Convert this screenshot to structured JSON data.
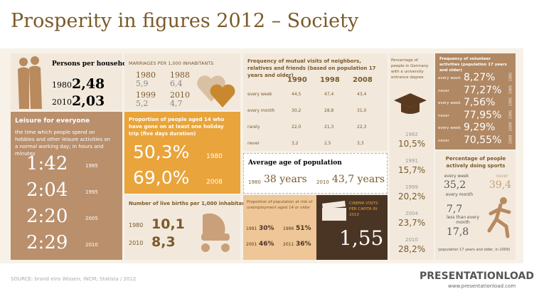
{
  "title": "Prosperity in figures 2012 – Society",
  "household": {
    "title": "Persons per household",
    "rows": [
      {
        "year": "1980",
        "value": "2,48"
      },
      {
        "year": "2010",
        "value": "2,03"
      }
    ]
  },
  "marriages": {
    "title": "MARRIAGES PER 1,000 INHABITANTS",
    "rows": [
      {
        "year": "1980",
        "value": "5,9"
      },
      {
        "year": "1988",
        "value": "6,4"
      },
      {
        "year": "1999",
        "value": "5,2"
      },
      {
        "year": "2010",
        "value": "4,7"
      }
    ]
  },
  "leisure": {
    "title": "Leisure for everyone",
    "description": "the time which people spend on hobbies and other leisure activities on a normal working day; in hours and minutes",
    "rows": [
      {
        "time": "1:42",
        "year": "1985"
      },
      {
        "time": "2:04",
        "year": "1995"
      },
      {
        "time": "2:20",
        "year": "2005"
      },
      {
        "time": "2:29",
        "year": "2010"
      }
    ]
  },
  "holiday": {
    "title": "Proportion of people aged 14 who have gone on at least one holiday trip (five days duration)",
    "rows": [
      {
        "value": "50,3%",
        "year": "1980"
      },
      {
        "value": "69,0%",
        "year": "2008"
      }
    ]
  },
  "births": {
    "title": "Number of live births per 1,000 inhabitants",
    "rows": [
      {
        "year": "1980",
        "value": "10,1"
      },
      {
        "year": "2010",
        "value": "8,3"
      }
    ]
  },
  "visits": {
    "title": "Frequency of mutual visits of neighbors, relatives and friends (based on population 17 years and older)",
    "columns": [
      "1990",
      "1998",
      "2008"
    ],
    "rows": [
      [
        "every week",
        "44,5",
        "47,4",
        "43,4"
      ],
      [
        "every month",
        "30,2",
        "28,8",
        "31,0"
      ],
      [
        "rarely",
        "22,0",
        "21,3",
        "22,3"
      ],
      [
        "never",
        "3,2",
        "2,5",
        "3,3"
      ]
    ]
  },
  "average_age": {
    "title": "Average age of population",
    "rows": [
      {
        "year": "1980",
        "value": "38 years"
      },
      {
        "year": "2010",
        "value": "43,7 years"
      }
    ]
  },
  "unemployment": {
    "title": "Proportion of population at risk of unemployment aged 14 or older",
    "rows": [
      {
        "year": "1991",
        "value": "30%"
      },
      {
        "year": "1996",
        "value": "51%"
      },
      {
        "year": "2001",
        "value": "46%"
      },
      {
        "year": "2011",
        "value": "36%"
      }
    ]
  },
  "cinema": {
    "title": "CINEMA VISITS PER CAPITA IN 2010",
    "value": "1,55"
  },
  "university": {
    "title": "Percentage of people in Germany with a university entrance degree",
    "rows": [
      {
        "year": "1982",
        "value": "10,5%"
      },
      {
        "year": "1991",
        "value": "15,7%"
      },
      {
        "year": "1999",
        "value": "20,2%"
      },
      {
        "year": "2004",
        "value": "23,7%"
      },
      {
        "year": "2010",
        "value": "28,2%"
      }
    ]
  },
  "volunteer": {
    "title": "Frequency of volunteer activities (population 17 years and older)",
    "rows": [
      {
        "label": "every week",
        "value": "8,27%",
        "year": "1985"
      },
      {
        "label": "never",
        "value": "77,27%",
        "year": "1985"
      },
      {
        "label": "every week",
        "value": "7,56%",
        "year": "1995"
      },
      {
        "label": "never",
        "value": "77,95%",
        "year": "1995"
      },
      {
        "label": "every week",
        "value": "9,29%",
        "year": "2009"
      },
      {
        "label": "never",
        "value": "70,55%",
        "year": "2009"
      }
    ]
  },
  "sports": {
    "title": "Percentage of people actively doing sports",
    "items": [
      {
        "label": "every week",
        "value": "35,2"
      },
      {
        "label": "never",
        "value": "39,4"
      },
      {
        "label": "every month",
        "value": "7,7"
      },
      {
        "label": "less than every month",
        "value": "17,8"
      }
    ],
    "note": "(population 17 years and older, in 2009)"
  },
  "footer": {
    "source": "SOURCE: brand eins Wissen; INCM; Statista / 2012",
    "logo": "PRESENTATIONLOAD",
    "url": "www.presentationload.com"
  }
}
